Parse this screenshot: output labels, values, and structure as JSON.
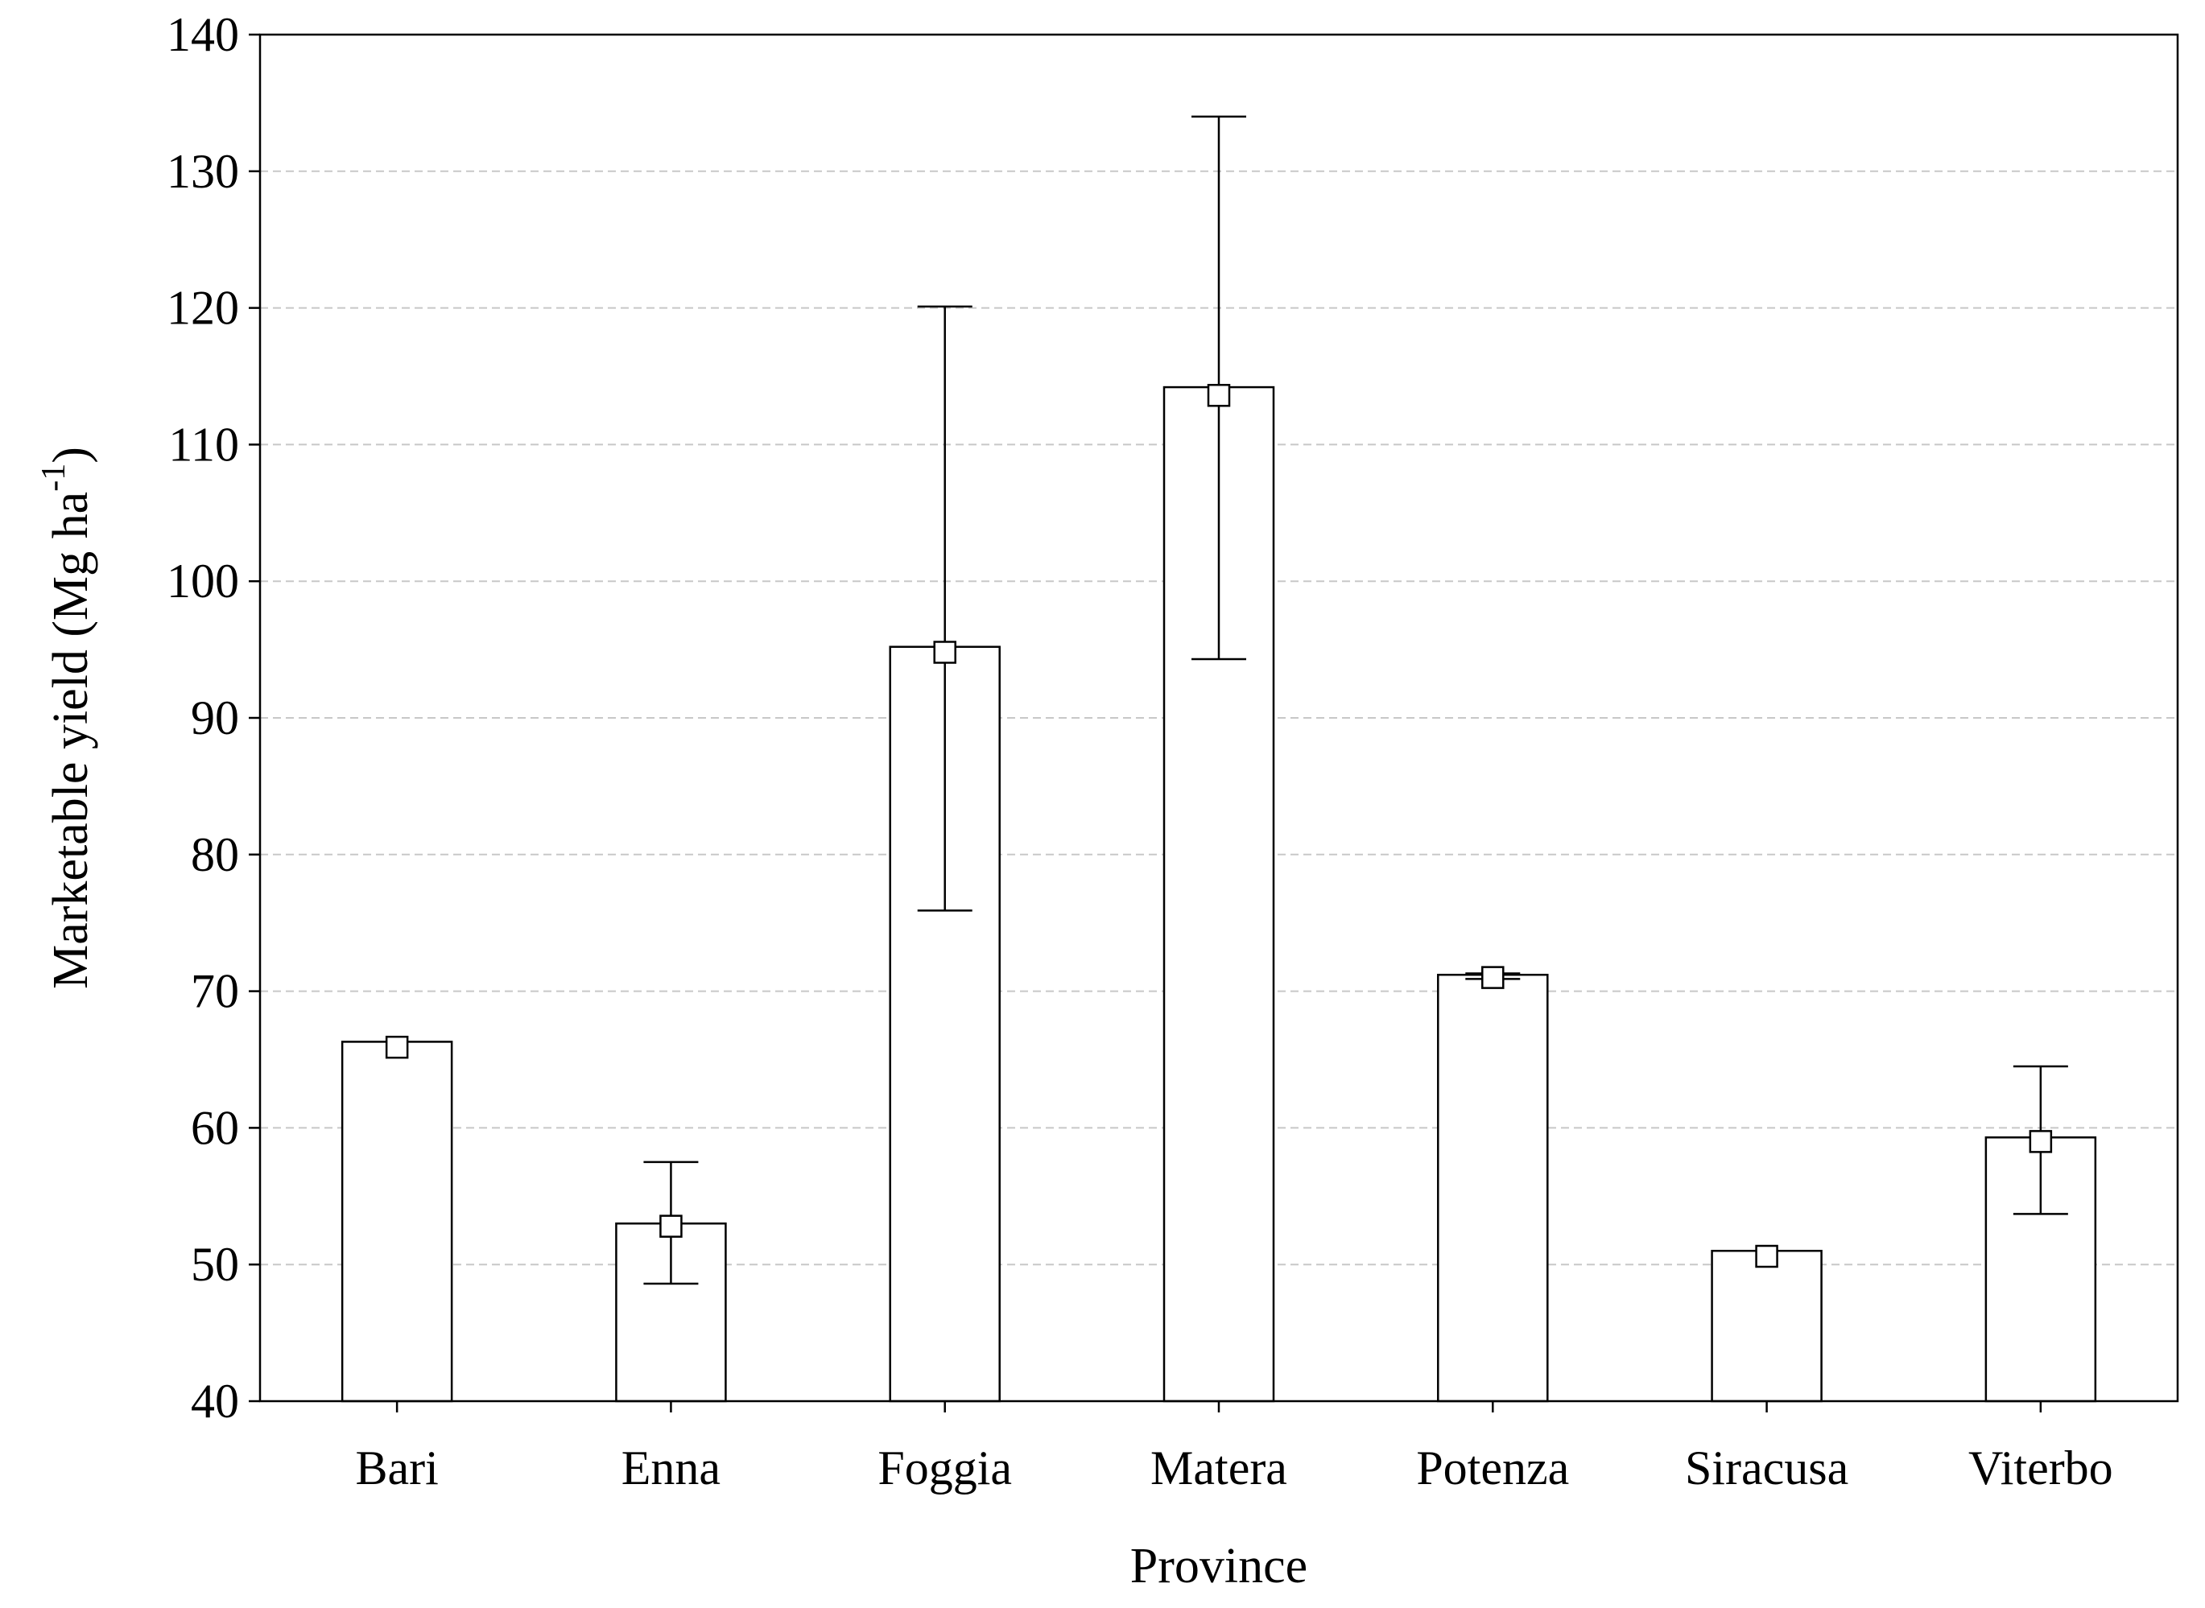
{
  "chart_data": {
    "type": "bar",
    "title": "",
    "xlabel": "Province",
    "ylabel": "Marketable yield (Mg ha",
    "ylabel_superscript": "-1",
    "ylabel_close": ")",
    "categories": [
      "Bari",
      "Enna",
      "Foggia",
      "Matera",
      "Potenza",
      "Siracusa",
      "Viterbo"
    ],
    "values": [
      66.3,
      53.0,
      95.2,
      114.2,
      71.2,
      51.0,
      59.3
    ],
    "point_markers": [
      65.9,
      52.8,
      94.8,
      113.6,
      71.0,
      50.6,
      59.0
    ],
    "error_low": [
      null,
      48.6,
      75.9,
      94.3,
      70.9,
      null,
      53.7
    ],
    "error_high": [
      null,
      57.5,
      120.1,
      134.0,
      71.3,
      null,
      64.5
    ],
    "ylim": [
      40,
      140
    ],
    "yticks": [
      40,
      50,
      60,
      70,
      80,
      90,
      100,
      110,
      120,
      130,
      140
    ],
    "grid": true,
    "legend": "none"
  }
}
